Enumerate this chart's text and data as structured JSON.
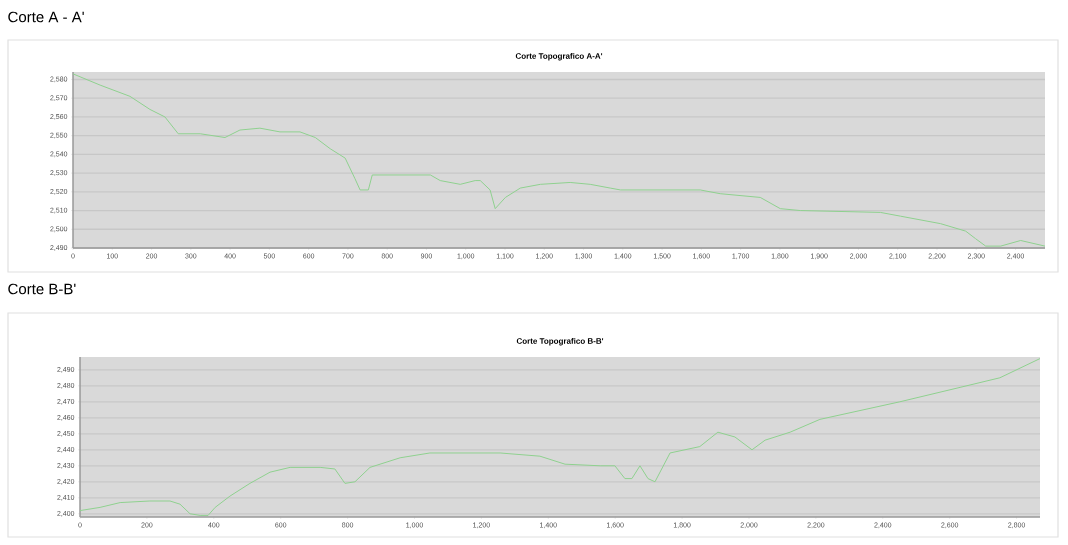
{
  "chart_data": [
    {
      "type": "line",
      "title": "Corte Topografico A-A'",
      "annotations": [
        "Corte A - A'"
      ],
      "color": "#8fd18f",
      "marker": "none",
      "line_style": "solid",
      "grid": "y",
      "x": [
        0,
        69,
        145,
        196,
        234,
        268,
        324,
        387,
        425,
        476,
        527,
        578,
        617,
        655,
        693,
        718,
        731,
        752,
        762,
        782,
        910,
        935,
        986,
        1024,
        1037,
        1062,
        1075,
        1101,
        1139,
        1190,
        1266,
        1317,
        1368,
        1394,
        1597,
        1648,
        1750,
        1801,
        1852,
        2056,
        2107,
        2209,
        2273,
        2298,
        2324,
        2362,
        2413,
        2475
      ],
      "values": [
        2583,
        2577,
        2571,
        2564,
        2560,
        2551,
        2551,
        2549,
        2553,
        2554,
        2552,
        2552,
        2549,
        2543,
        2538,
        2527,
        2521,
        2521,
        2529,
        2529,
        2529,
        2526,
        2524,
        2526,
        2526,
        2521,
        2511,
        2517,
        2522,
        2524,
        2525,
        2524,
        2522,
        2521,
        2521,
        2519,
        2517,
        2511,
        2510,
        2509,
        2507,
        2503,
        2499,
        2495,
        2491,
        2491,
        2494,
        2491
      ],
      "xlim": [
        0,
        2475
      ],
      "ylim": [
        2490,
        2584
      ],
      "xticks": [
        0,
        100,
        200,
        300,
        400,
        500,
        600,
        700,
        800,
        900,
        {
          "value": 1000,
          "label": "1,000"
        },
        {
          "value": 1100,
          "label": "1,100"
        },
        {
          "value": 1200,
          "label": "1,200"
        },
        {
          "value": 1300,
          "label": "1,300"
        },
        {
          "value": 1400,
          "label": "1,400"
        },
        {
          "value": 1500,
          "label": "1,500"
        },
        {
          "value": 1600,
          "label": "1,600"
        },
        {
          "value": 1700,
          "label": "1,700"
        },
        {
          "value": 1800,
          "label": "1,800"
        },
        {
          "value": 1900,
          "label": "1,900"
        },
        {
          "value": 2000,
          "label": "2,000"
        },
        {
          "value": 2100,
          "label": "2,100"
        },
        {
          "value": 2200,
          "label": "2,200"
        },
        {
          "value": 2300,
          "label": "2,300"
        },
        {
          "value": 2400,
          "label": "2,400"
        }
      ],
      "yticks": [
        {
          "value": 2490,
          "label": "2,490"
        },
        {
          "value": 2500,
          "label": "2,500"
        },
        {
          "value": 2510,
          "label": "2,510"
        },
        {
          "value": 2520,
          "label": "2,520"
        },
        {
          "value": 2530,
          "label": "2,530"
        },
        {
          "value": 2540,
          "label": "2,540"
        },
        {
          "value": 2550,
          "label": "2,550"
        },
        {
          "value": 2560,
          "label": "2,560"
        },
        {
          "value": 2570,
          "label": "2,570"
        },
        {
          "value": 2580,
          "label": "2,580"
        }
      ]
    },
    {
      "type": "line",
      "title": "Corte Topografico B-B'",
      "annotations": [
        "Corte B-B'"
      ],
      "color": "#8fd18f",
      "marker": "none",
      "line_style": "solid",
      "grid": "y",
      "x": [
        0,
        60,
        120,
        209,
        269,
        299,
        329,
        359,
        383,
        404,
        448,
        508,
        568,
        628,
        718,
        762,
        792,
        822,
        867,
        957,
        1046,
        1256,
        1375,
        1450,
        1555,
        1599,
        1629,
        1650,
        1674,
        1698,
        1719,
        1764,
        1853,
        1907,
        1958,
        2009,
        2048,
        2123,
        2212,
        2451,
        2631,
        2750,
        2870
      ],
      "values": [
        2402,
        2404,
        2407,
        2408,
        2408,
        2406,
        2400,
        2399,
        2399,
        2404,
        2411,
        2419,
        2426,
        2429,
        2429,
        2428,
        2419,
        2420,
        2429,
        2435,
        2438,
        2438,
        2436,
        2431,
        2430,
        2430,
        2422,
        2422,
        2430,
        2422,
        2420,
        2438,
        2442,
        2451,
        2448,
        2440,
        2446,
        2451,
        2459,
        2470,
        2479,
        2485,
        2497
      ],
      "xlim": [
        0,
        2870
      ],
      "ylim": [
        2398,
        2498
      ],
      "xticks": [
        0,
        200,
        400,
        600,
        800,
        {
          "value": 1000,
          "label": "1,000"
        },
        {
          "value": 1200,
          "label": "1,200"
        },
        {
          "value": 1400,
          "label": "1,400"
        },
        {
          "value": 1600,
          "label": "1,600"
        },
        {
          "value": 1800,
          "label": "1,800"
        },
        {
          "value": 2000,
          "label": "2,000"
        },
        {
          "value": 2200,
          "label": "2,200"
        },
        {
          "value": 2400,
          "label": "2,400"
        },
        {
          "value": 2600,
          "label": "2,600"
        },
        {
          "value": 2800,
          "label": "2,800"
        }
      ],
      "yticks": [
        {
          "value": 2400,
          "label": "2,400"
        },
        {
          "value": 2410,
          "label": "2,410"
        },
        {
          "value": 2420,
          "label": "2,420"
        },
        {
          "value": 2430,
          "label": "2,430"
        },
        {
          "value": 2440,
          "label": "2,440"
        },
        {
          "value": 2450,
          "label": "2,450"
        },
        {
          "value": 2460,
          "label": "2,460"
        },
        {
          "value": 2470,
          "label": "2,470"
        },
        {
          "value": 2480,
          "label": "2,480"
        },
        {
          "value": 2490,
          "label": "2,490"
        }
      ]
    }
  ]
}
